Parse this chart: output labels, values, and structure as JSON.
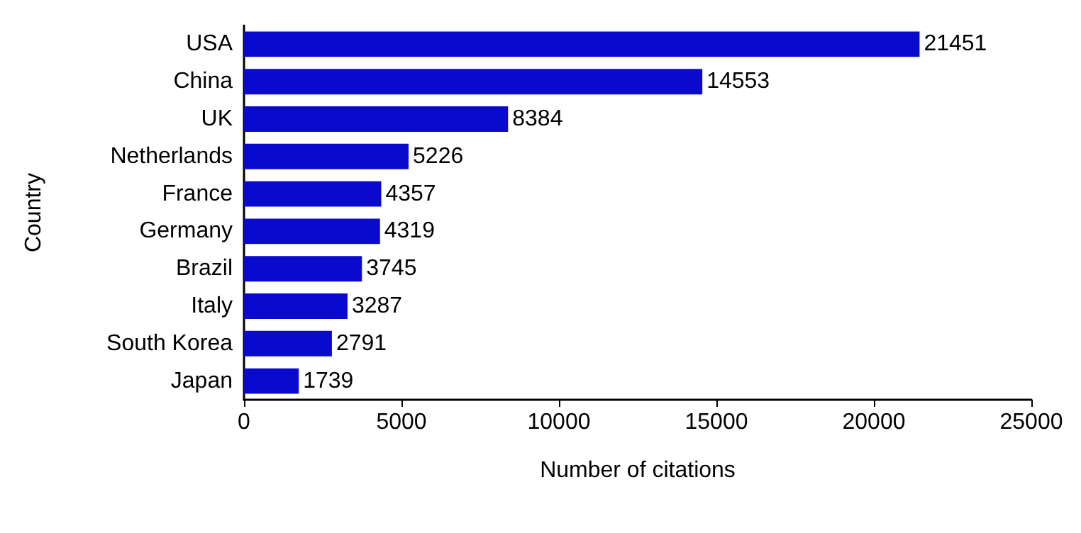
{
  "chart_data": {
    "type": "bar",
    "orientation": "horizontal",
    "xlabel": "Number of citations",
    "ylabel": "Country",
    "categories": [
      "USA",
      "China",
      "UK",
      "Netherlands",
      "France",
      "Germany",
      "Brazil",
      "Italy",
      "South Korea",
      "Japan"
    ],
    "values": [
      21451,
      14553,
      8384,
      5226,
      4357,
      4319,
      3745,
      3287,
      2791,
      1739
    ],
    "color": "#0a0acd",
    "xlim": [
      0,
      25000
    ],
    "xticks": [
      0,
      5000,
      10000,
      15000,
      20000,
      25000
    ],
    "data_labels": true,
    "grid": false
  }
}
